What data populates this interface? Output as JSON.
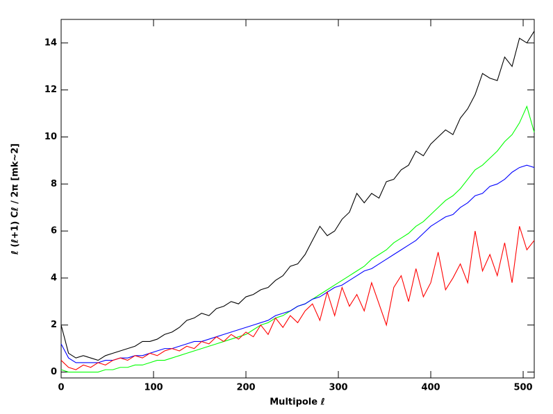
{
  "chart_data": {
    "type": "line",
    "xlabel": "Multipole ℓ",
    "ylabel": "ℓ (ℓ+1) Cℓ / 2π [mk~2]",
    "x": [
      0,
      8,
      16,
      24,
      32,
      40,
      48,
      56,
      64,
      72,
      80,
      88,
      96,
      104,
      112,
      120,
      128,
      136,
      144,
      152,
      160,
      168,
      176,
      184,
      192,
      200,
      208,
      216,
      224,
      232,
      240,
      248,
      256,
      264,
      272,
      280,
      288,
      296,
      304,
      312,
      320,
      328,
      336,
      344,
      352,
      360,
      368,
      376,
      384,
      392,
      400,
      408,
      416,
      424,
      432,
      440,
      448,
      456,
      464,
      472,
      480,
      488,
      496,
      504,
      512
    ],
    "series": [
      {
        "color": "#000000",
        "values": [
          2.0,
          0.8,
          0.6,
          0.7,
          0.6,
          0.5,
          0.7,
          0.8,
          0.9,
          1.0,
          1.1,
          1.3,
          1.3,
          1.4,
          1.6,
          1.7,
          1.9,
          2.2,
          2.3,
          2.5,
          2.4,
          2.7,
          2.8,
          3.0,
          2.9,
          3.2,
          3.3,
          3.5,
          3.6,
          3.9,
          4.1,
          4.5,
          4.6,
          5.0,
          5.6,
          6.2,
          5.8,
          6.0,
          6.5,
          6.8,
          7.6,
          7.2,
          7.6,
          7.4,
          8.1,
          8.2,
          8.6,
          8.8,
          9.4,
          9.2,
          9.7,
          10.0,
          10.3,
          10.1,
          10.8,
          11.2,
          11.8,
          12.7,
          12.5,
          12.4,
          13.4,
          13.0,
          14.2,
          14.0,
          14.5
        ]
      },
      {
        "color": "#00ff00",
        "values": [
          0.1,
          0.0,
          0.0,
          0.0,
          0.0,
          0.0,
          0.1,
          0.1,
          0.2,
          0.2,
          0.3,
          0.3,
          0.4,
          0.5,
          0.5,
          0.6,
          0.7,
          0.8,
          0.9,
          1.0,
          1.1,
          1.2,
          1.3,
          1.4,
          1.5,
          1.6,
          1.8,
          2.0,
          2.1,
          2.3,
          2.4,
          2.6,
          2.8,
          2.9,
          3.1,
          3.3,
          3.5,
          3.7,
          3.9,
          4.1,
          4.3,
          4.5,
          4.8,
          5.0,
          5.2,
          5.5,
          5.7,
          5.9,
          6.2,
          6.4,
          6.7,
          7.0,
          7.3,
          7.5,
          7.8,
          8.2,
          8.6,
          8.8,
          9.1,
          9.4,
          9.8,
          10.1,
          10.6,
          11.3,
          10.2
        ]
      },
      {
        "color": "#0000ff",
        "values": [
          1.2,
          0.6,
          0.4,
          0.4,
          0.4,
          0.4,
          0.5,
          0.5,
          0.6,
          0.6,
          0.7,
          0.7,
          0.8,
          0.9,
          1.0,
          1.0,
          1.1,
          1.2,
          1.3,
          1.3,
          1.4,
          1.5,
          1.6,
          1.7,
          1.8,
          1.9,
          2.0,
          2.1,
          2.2,
          2.4,
          2.5,
          2.6,
          2.8,
          2.9,
          3.1,
          3.2,
          3.4,
          3.6,
          3.7,
          3.9,
          4.1,
          4.3,
          4.4,
          4.6,
          4.8,
          5.0,
          5.2,
          5.4,
          5.6,
          5.9,
          6.2,
          6.4,
          6.6,
          6.7,
          7.0,
          7.2,
          7.5,
          7.6,
          7.9,
          8.0,
          8.2,
          8.5,
          8.7,
          8.8,
          8.7
        ]
      },
      {
        "color": "#ff0000",
        "values": [
          0.5,
          0.2,
          0.1,
          0.3,
          0.2,
          0.4,
          0.3,
          0.5,
          0.6,
          0.5,
          0.7,
          0.6,
          0.8,
          0.7,
          0.9,
          1.0,
          0.9,
          1.1,
          1.0,
          1.3,
          1.2,
          1.5,
          1.3,
          1.6,
          1.4,
          1.7,
          1.5,
          2.0,
          1.6,
          2.3,
          1.9,
          2.4,
          2.1,
          2.6,
          2.9,
          2.2,
          3.4,
          2.4,
          3.6,
          2.8,
          3.3,
          2.6,
          3.8,
          2.9,
          2.0,
          3.6,
          4.1,
          3.0,
          4.4,
          3.2,
          3.8,
          5.1,
          3.5,
          4.0,
          4.6,
          3.8,
          6.0,
          4.3,
          5.0,
          4.1,
          5.5,
          3.8,
          6.2,
          5.2,
          5.6
        ]
      }
    ],
    "xlim": [
      0,
      512
    ],
    "ylim": [
      -0.25,
      15
    ],
    "xticks": [
      0,
      100,
      200,
      300,
      400,
      500
    ],
    "yticks": [
      0,
      2,
      4,
      6,
      8,
      10,
      12,
      14
    ]
  }
}
